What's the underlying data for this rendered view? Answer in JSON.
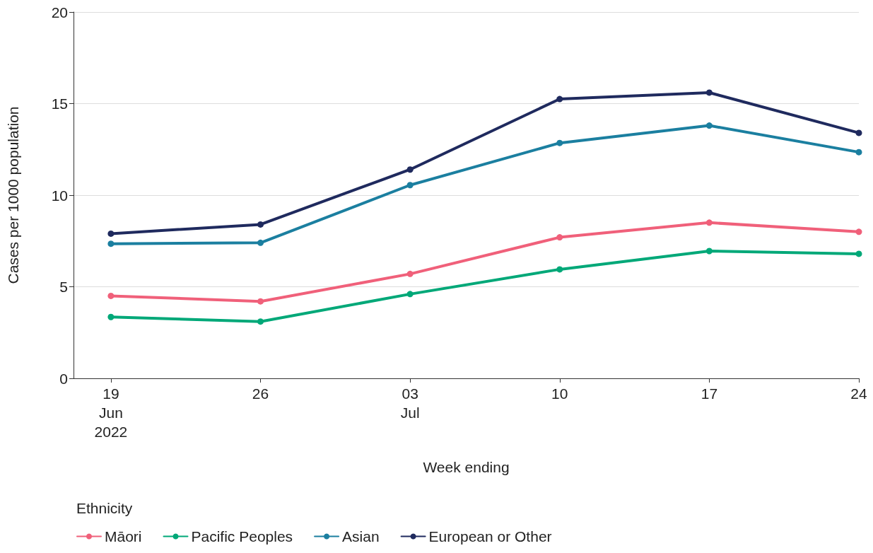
{
  "chart_data": {
    "type": "line",
    "xlabel": "Week ending",
    "ylabel": "Cases per 1000 population",
    "legend_title": "Ethnicity",
    "x": [
      "2022-06-19",
      "2022-06-26",
      "2022-07-03",
      "2022-07-10",
      "2022-07-17",
      "2022-07-24"
    ],
    "series": [
      {
        "name": "Māori",
        "color": "#f0607a",
        "values": [
          4.5,
          4.2,
          5.7,
          7.7,
          8.5,
          8.0
        ]
      },
      {
        "name": "Pacific Peoples",
        "color": "#00a878",
        "values": [
          3.35,
          3.1,
          4.6,
          5.95,
          6.95,
          6.8
        ]
      },
      {
        "name": "Asian",
        "color": "#1b7fa0",
        "values": [
          7.35,
          7.4,
          10.55,
          12.85,
          13.8,
          12.35
        ]
      },
      {
        "name": "European or Other",
        "color": "#1f2a5e",
        "values": [
          7.9,
          8.4,
          11.4,
          15.25,
          15.6,
          13.4
        ]
      }
    ],
    "xlim": [
      "2022-06-17T06:00",
      "2022-07-24"
    ],
    "xticks": [
      {
        "value": "2022-06-19",
        "label": "19\nJun\n2022"
      },
      {
        "value": "2022-06-26",
        "label": "26"
      },
      {
        "value": "2022-07-03",
        "label": "03\nJul"
      },
      {
        "value": "2022-07-10",
        "label": "10"
      },
      {
        "value": "2022-07-17",
        "label": "17"
      },
      {
        "value": "2022-07-24",
        "label": "24"
      }
    ],
    "ylim": [
      0,
      20
    ],
    "yticks": [
      0,
      5,
      10,
      15,
      20
    ],
    "grid": "y",
    "legend": "bottom left",
    "marker": "circle",
    "line_style": "solid"
  }
}
